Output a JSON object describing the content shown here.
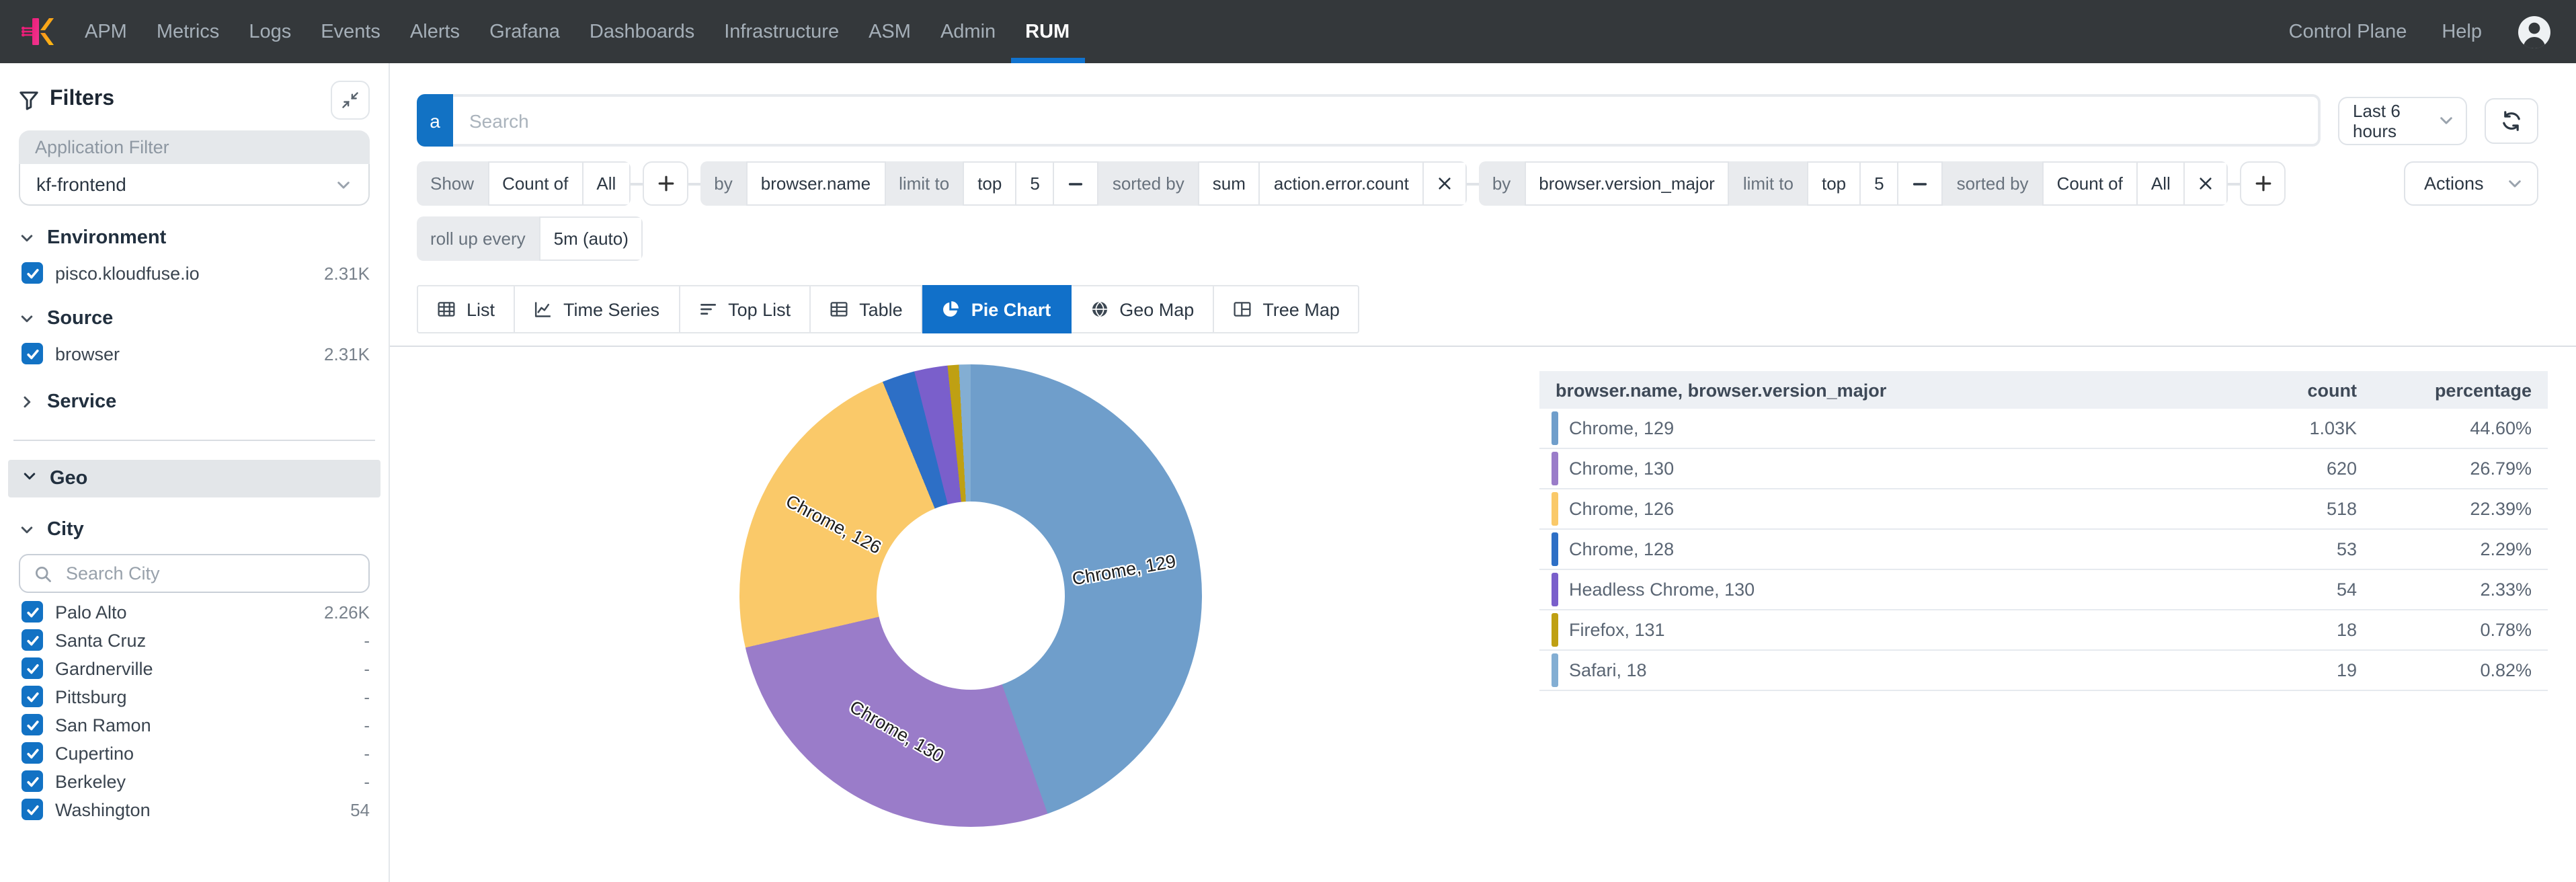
{
  "nav": {
    "items": [
      "APM",
      "Metrics",
      "Logs",
      "Events",
      "Alerts",
      "Grafana",
      "Dashboards",
      "Infrastructure",
      "ASM",
      "Admin",
      "RUM"
    ],
    "active_item": "RUM",
    "right_items": [
      "Control Plane",
      "Help"
    ]
  },
  "sidebar": {
    "title": "Filters",
    "application_filter": {
      "label": "Application Filter",
      "value": "kf-frontend"
    },
    "sections": {
      "environment": {
        "label": "Environment",
        "items": [
          {
            "label": "pisco.kloudfuse.io",
            "count": "2.31K",
            "checked": true
          }
        ]
      },
      "source": {
        "label": "Source",
        "items": [
          {
            "label": "browser",
            "count": "2.31K",
            "checked": true
          }
        ]
      },
      "service": {
        "label": "Service"
      },
      "geo": {
        "label": "Geo"
      },
      "city": {
        "label": "City",
        "search_placeholder": "Search City",
        "items": [
          {
            "label": "Palo Alto",
            "count": "2.26K",
            "checked": true
          },
          {
            "label": "Santa Cruz",
            "count": "-",
            "checked": true
          },
          {
            "label": "Gardnerville",
            "count": "-",
            "checked": true
          },
          {
            "label": "Pittsburg",
            "count": "-",
            "checked": true
          },
          {
            "label": "San Ramon",
            "count": "-",
            "checked": true
          },
          {
            "label": "Cupertino",
            "count": "-",
            "checked": true
          },
          {
            "label": "Berkeley",
            "count": "-",
            "checked": true
          },
          {
            "label": "Washington",
            "count": "54",
            "checked": true
          }
        ]
      }
    }
  },
  "toolbar": {
    "search": {
      "badge": "a",
      "placeholder": "Search"
    },
    "time_range": {
      "label": "Last 6 hours"
    },
    "actions_label": "Actions",
    "rollup": [
      {
        "text": "roll up every",
        "kind": "label"
      },
      {
        "text": "5m (auto)",
        "kind": "value"
      }
    ],
    "query_groups": [
      {
        "items": [
          {
            "text": "Show",
            "kind": "label"
          },
          {
            "text": "Count of",
            "kind": "value"
          },
          {
            "text": "All",
            "kind": "value"
          }
        ]
      },
      {
        "items": [
          {
            "kind": "add",
            "icon": "plus-icon"
          }
        ]
      },
      {
        "items": [
          {
            "text": "by",
            "kind": "label"
          },
          {
            "text": "browser.name",
            "kind": "value"
          },
          {
            "text": "limit to",
            "kind": "label"
          },
          {
            "text": "top",
            "kind": "value"
          },
          {
            "text": "5",
            "kind": "value"
          },
          {
            "kind": "minus",
            "icon": "minus-icon"
          },
          {
            "text": "sorted by",
            "kind": "label"
          },
          {
            "text": "sum",
            "kind": "value"
          },
          {
            "text": "action.error.count",
            "kind": "value"
          },
          {
            "kind": "close",
            "icon": "close-icon"
          }
        ]
      },
      {
        "items": [
          {
            "text": "by",
            "kind": "label"
          },
          {
            "text": "browser.version_major",
            "kind": "value"
          },
          {
            "text": "limit to",
            "kind": "label"
          },
          {
            "text": "top",
            "kind": "value"
          },
          {
            "text": "5",
            "kind": "value"
          },
          {
            "kind": "minus",
            "icon": "minus-icon"
          },
          {
            "text": "sorted by",
            "kind": "label"
          },
          {
            "text": "Count of",
            "kind": "value"
          },
          {
            "text": "All",
            "kind": "value"
          },
          {
            "kind": "close",
            "icon": "close-icon"
          }
        ]
      },
      {
        "items": [
          {
            "kind": "add",
            "icon": "plus-icon"
          }
        ]
      }
    ]
  },
  "tabs": [
    {
      "label": "List",
      "icon": "list-icon",
      "active": false
    },
    {
      "label": "Time Series",
      "icon": "time-series-icon",
      "active": false
    },
    {
      "label": "Top List",
      "icon": "top-list-icon",
      "active": false
    },
    {
      "label": "Table",
      "icon": "table-icon",
      "active": false
    },
    {
      "label": "Pie Chart",
      "icon": "pie-chart-icon",
      "active": true
    },
    {
      "label": "Geo Map",
      "icon": "geo-map-icon",
      "active": false
    },
    {
      "label": "Tree Map",
      "icon": "tree-map-icon",
      "active": false
    }
  ],
  "chart_data": {
    "type": "pie",
    "donut": true,
    "group_by": "browser.name, browser.version_major",
    "legend_position": "none",
    "label_min_pct_shown": 5,
    "slices": [
      {
        "label": "Chrome, 129",
        "count": "1.03K",
        "percentage": 44.6,
        "color": "#6f9ecb"
      },
      {
        "label": "Chrome, 130",
        "count": "620",
        "percentage": 26.79,
        "color": "#9a7cc9"
      },
      {
        "label": "Chrome, 126",
        "count": "518",
        "percentage": 22.39,
        "color": "#fac969"
      },
      {
        "label": "Chrome, 128",
        "count": "53",
        "percentage": 2.29,
        "color": "#2d6fc6"
      },
      {
        "label": "Headless Chrome, 130",
        "count": "54",
        "percentage": 2.33,
        "color": "#7a5fcb"
      },
      {
        "label": "Firefox, 131",
        "count": "18",
        "percentage": 0.78,
        "color": "#bfa013"
      },
      {
        "label": "Safari, 18",
        "count": "19",
        "percentage": 0.82,
        "color": "#83aed3"
      }
    ]
  },
  "table": {
    "columns": [
      "browser.name, browser.version_major",
      "count",
      "percentage"
    ]
  },
  "colors": {
    "accent": "#1272c4",
    "active_tab": "#1170c9",
    "nav_bg": "#34383b"
  }
}
